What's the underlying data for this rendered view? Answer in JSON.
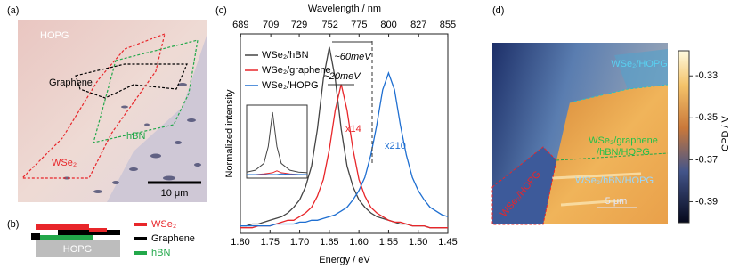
{
  "panel_a": {
    "label": "(a)",
    "hopg": "HOPG",
    "graphene": "Graphene",
    "hbn": "hBN",
    "wse2": "WSe₂",
    "scale": "10 μm"
  },
  "panel_b": {
    "label": "(b)",
    "hopg": "HOPG",
    "legend": [
      {
        "name": "WSe₂",
        "color": "#e8262a"
      },
      {
        "name": "Graphene",
        "color": "#000000"
      },
      {
        "name": "hBN",
        "color": "#22a84a"
      }
    ]
  },
  "chart_data": {
    "type": "line",
    "panel_label": "(c)",
    "xlabel": "Energy / eV",
    "ylabel": "Normalized intensity",
    "x2label": "Wavelength / nm",
    "xlim": [
      1.8,
      1.45
    ],
    "xticks": [
      {
        "value": 1.8,
        "label": "1.80"
      },
      1.75,
      {
        "value": 1.7,
        "label": "1.70"
      },
      1.65,
      {
        "value": 1.6,
        "label": "1.60"
      },
      1.55,
      {
        "value": 1.5,
        "label": "1.50"
      },
      1.45
    ],
    "x2ticks": [
      689,
      709,
      729,
      752,
      775,
      800,
      827,
      855
    ],
    "ylim": [
      0,
      1.07
    ],
    "x": [
      1.8,
      1.79,
      1.78,
      1.77,
      1.76,
      1.75,
      1.74,
      1.73,
      1.72,
      1.71,
      1.7,
      1.69,
      1.68,
      1.67,
      1.66,
      1.65,
      1.64,
      1.63,
      1.62,
      1.61,
      1.6,
      1.59,
      1.58,
      1.57,
      1.56,
      1.55,
      1.54,
      1.53,
      1.52,
      1.51,
      1.5,
      1.49,
      1.48,
      1.47,
      1.46,
      1.45
    ],
    "series": [
      {
        "name": "WSe₂/hBN",
        "color": "#444444",
        "values": [
          0.04,
          0.04,
          0.05,
          0.05,
          0.06,
          0.07,
          0.08,
          0.09,
          0.11,
          0.14,
          0.18,
          0.25,
          0.36,
          0.56,
          0.83,
          1.0,
          0.83,
          0.56,
          0.36,
          0.25,
          0.18,
          0.14,
          0.11,
          0.09,
          0.08,
          0.07,
          0.06,
          0.05,
          0.05,
          0.04,
          0.04,
          0.04,
          0.03,
          0.03,
          0.03,
          0.03
        ]
      },
      {
        "name": "WSe₂/graphene",
        "color": "#e8262a",
        "values": [
          0.03,
          0.03,
          0.03,
          0.04,
          0.04,
          0.04,
          0.05,
          0.06,
          0.07,
          0.07,
          0.09,
          0.11,
          0.14,
          0.2,
          0.29,
          0.45,
          0.66,
          0.8,
          0.66,
          0.45,
          0.29,
          0.2,
          0.14,
          0.11,
          0.09,
          0.07,
          0.06,
          0.06,
          0.05,
          0.04,
          0.04,
          0.04,
          0.03,
          0.03,
          0.03,
          0.03
        ]
      },
      {
        "name": "WSe₂/HOPG",
        "color": "#1f6fd1",
        "values": [
          0.04,
          0.04,
          0.04,
          0.04,
          0.04,
          0.04,
          0.05,
          0.05,
          0.05,
          0.05,
          0.06,
          0.06,
          0.07,
          0.07,
          0.08,
          0.09,
          0.1,
          0.12,
          0.14,
          0.18,
          0.23,
          0.3,
          0.42,
          0.58,
          0.77,
          0.86,
          0.77,
          0.58,
          0.42,
          0.3,
          0.23,
          0.18,
          0.14,
          0.12,
          0.1,
          0.09
        ]
      }
    ],
    "annotations": [
      "~60meV",
      "~20meV",
      "x14",
      "x210"
    ],
    "inset": {
      "x": [
        1.8,
        1.75,
        1.7,
        1.675,
        1.65,
        1.625,
        1.6,
        1.55,
        1.5,
        1.45
      ],
      "series": [
        [
          0.04,
          0.07,
          0.18,
          0.45,
          1.0,
          0.45,
          0.18,
          0.07,
          0.04,
          0.03
        ],
        [
          0.0,
          0.0,
          0.01,
          0.02,
          0.03,
          0.06,
          0.03,
          0.01,
          0.0,
          0.0
        ],
        [
          0.0,
          0.0,
          0.0,
          0.0,
          0.0,
          0.0,
          0.01,
          0.004,
          0.001,
          0.0
        ]
      ]
    }
  },
  "panel_d": {
    "label": "(d)",
    "top_label": "WSe₂/HOPG",
    "graphene_label": [
      "WSe₂/graphene",
      "/hBN/HOPG"
    ],
    "hbn_label": "WSe₂/hBN/HOPG",
    "hopg_label": "WSe₂/HOPG",
    "scale": "5 μm",
    "colorbar": {
      "lim": [
        -0.4,
        -0.318
      ],
      "ticks": [
        -0.33,
        -0.35,
        -0.37,
        -0.39
      ],
      "label": "CPD / V"
    }
  }
}
